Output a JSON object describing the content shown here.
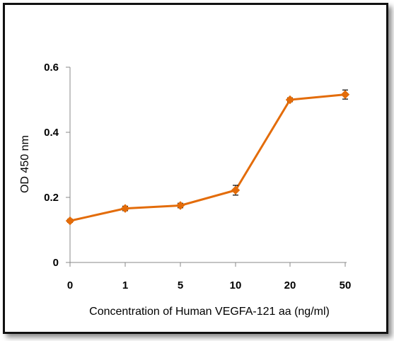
{
  "chart_data": {
    "type": "line",
    "title": "",
    "xlabel": "Concentration of Human VEGFA-121 aa (ng/ml)",
    "ylabel": "OD 450 nm",
    "categories": [
      "0",
      "1",
      "5",
      "10",
      "20",
      "50"
    ],
    "yticks": [
      "0",
      "0.2",
      "0.4",
      "0.6"
    ],
    "ylim": [
      0,
      0.6
    ],
    "grid": false,
    "legend": "none",
    "series": [
      {
        "values": [
          0.128,
          0.166,
          0.175,
          0.222,
          0.5,
          0.516
        ],
        "errors": [
          0.005,
          0.007,
          0.007,
          0.015,
          0.006,
          0.014
        ],
        "color": "#E36C0A"
      }
    ]
  }
}
